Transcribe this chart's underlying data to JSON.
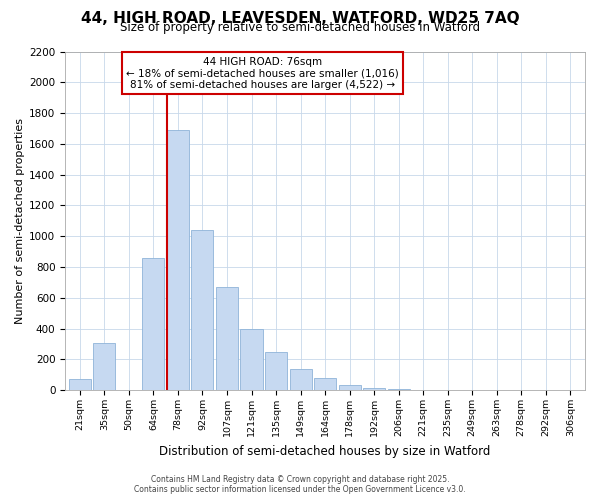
{
  "title": "44, HIGH ROAD, LEAVESDEN, WATFORD, WD25 7AQ",
  "subtitle": "Size of property relative to semi-detached houses in Watford",
  "xlabel": "Distribution of semi-detached houses by size in Watford",
  "ylabel": "Number of semi-detached properties",
  "bin_labels": [
    "21sqm",
    "35sqm",
    "50sqm",
    "64sqm",
    "78sqm",
    "92sqm",
    "107sqm",
    "121sqm",
    "135sqm",
    "149sqm",
    "164sqm",
    "178sqm",
    "192sqm",
    "206sqm",
    "221sqm",
    "235sqm",
    "249sqm",
    "263sqm",
    "278sqm",
    "292sqm",
    "306sqm"
  ],
  "bar_heights": [
    75,
    305,
    0,
    860,
    1690,
    1040,
    670,
    395,
    245,
    140,
    80,
    35,
    15,
    8,
    4,
    2,
    1,
    1,
    0,
    0,
    0
  ],
  "bar_color": "#c6d9f1",
  "bar_edge_color": "#8fb4d9",
  "vline_color": "#cc0000",
  "annotation_title": "44 HIGH ROAD: 76sqm",
  "annotation_line1": "← 18% of semi-detached houses are smaller (1,016)",
  "annotation_line2": "81% of semi-detached houses are larger (4,522) →",
  "annotation_box_color": "#cc0000",
  "ylim": [
    0,
    2200
  ],
  "yticks": [
    0,
    200,
    400,
    600,
    800,
    1000,
    1200,
    1400,
    1600,
    1800,
    2000,
    2200
  ],
  "footer1": "Contains HM Land Registry data © Crown copyright and database right 2025.",
  "footer2": "Contains public sector information licensed under the Open Government Licence v3.0.",
  "bg_color": "#ffffff",
  "grid_color": "#c8d8ea",
  "title_fontsize": 11,
  "subtitle_fontsize": 8.5,
  "ylabel_fontsize": 8,
  "xlabel_fontsize": 8.5,
  "annotation_fontsize": 7.5,
  "tick_fontsize": 7.5,
  "xtick_fontsize": 6.8
}
